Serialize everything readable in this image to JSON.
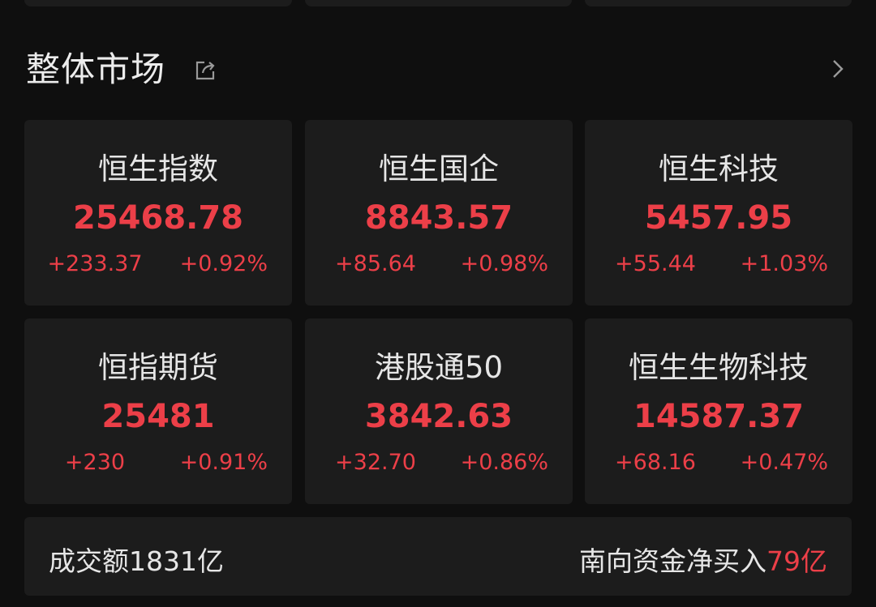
{
  "header": {
    "title": "整体市场",
    "share_icon": "share-icon",
    "more_icon": "chevron-right-icon"
  },
  "colors": {
    "up": "#ec3f48",
    "background": "#0f0f0f",
    "card": "#1c1c1c"
  },
  "indices": [
    {
      "name": "恒生指数",
      "value": "25468.78",
      "change": "+233.37",
      "percent": "+0.92%"
    },
    {
      "name": "恒生国企",
      "value": "8843.57",
      "change": "+85.64",
      "percent": "+0.98%"
    },
    {
      "name": "恒生科技",
      "value": "5457.95",
      "change": "+55.44",
      "percent": "+1.03%"
    },
    {
      "name": "恒指期货",
      "value": "25481",
      "change": "+230",
      "percent": "+0.91%"
    },
    {
      "name": "港股通50",
      "value": "3842.63",
      "change": "+32.70",
      "percent": "+0.86%"
    },
    {
      "name": "恒生生物科技",
      "value": "14587.37",
      "change": "+68.16",
      "percent": "+0.47%"
    }
  ],
  "summary": {
    "turnover": "成交额1831亿",
    "southbound_label": "南向资金净买入",
    "southbound_value": "79亿"
  }
}
